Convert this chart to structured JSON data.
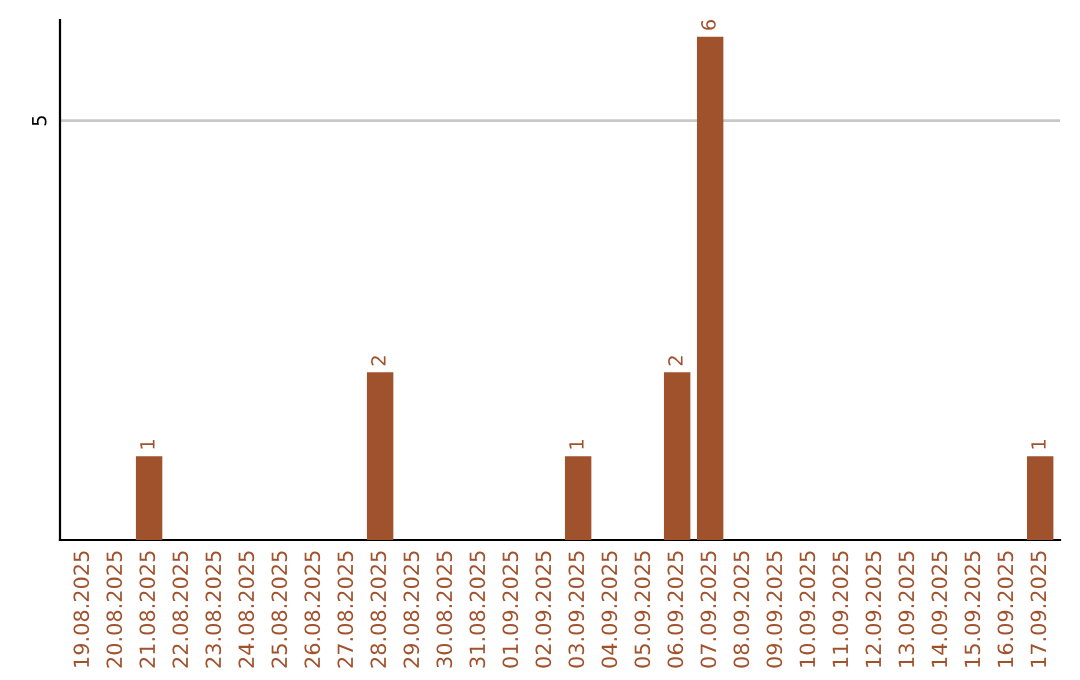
{
  "chart_data": {
    "type": "bar",
    "categories": [
      "19.08.2025",
      "20.08.2025",
      "21.08.2025",
      "22.08.2025",
      "23.08.2025",
      "24.08.2025",
      "25.08.2025",
      "26.08.2025",
      "27.08.2025",
      "28.08.2025",
      "29.08.2025",
      "30.08.2025",
      "31.08.2025",
      "01.09.2025",
      "02.09.2025",
      "03.09.2025",
      "04.09.2025",
      "05.09.2025",
      "06.09.2025",
      "07.09.2025",
      "08.09.2025",
      "09.09.2025",
      "10.09.2025",
      "11.09.2025",
      "12.09.2025",
      "13.09.2025",
      "14.09.2025",
      "15.09.2025",
      "16.09.2025",
      "17.09.2025"
    ],
    "values": [
      0,
      0,
      1,
      0,
      0,
      0,
      0,
      0,
      0,
      2,
      0,
      0,
      0,
      0,
      0,
      1,
      0,
      0,
      2,
      6,
      0,
      0,
      0,
      0,
      0,
      0,
      0,
      0,
      0,
      1
    ],
    "value_labels": [
      null,
      null,
      "1",
      null,
      null,
      null,
      null,
      null,
      null,
      "2",
      null,
      null,
      null,
      null,
      null,
      "1",
      null,
      null,
      "2",
      "6",
      null,
      null,
      null,
      null,
      null,
      null,
      null,
      null,
      null,
      "1"
    ],
    "color": "#a0522d",
    "ylim": [
      0,
      6.2
    ],
    "yticks": [
      5
    ],
    "grid": "y"
  }
}
